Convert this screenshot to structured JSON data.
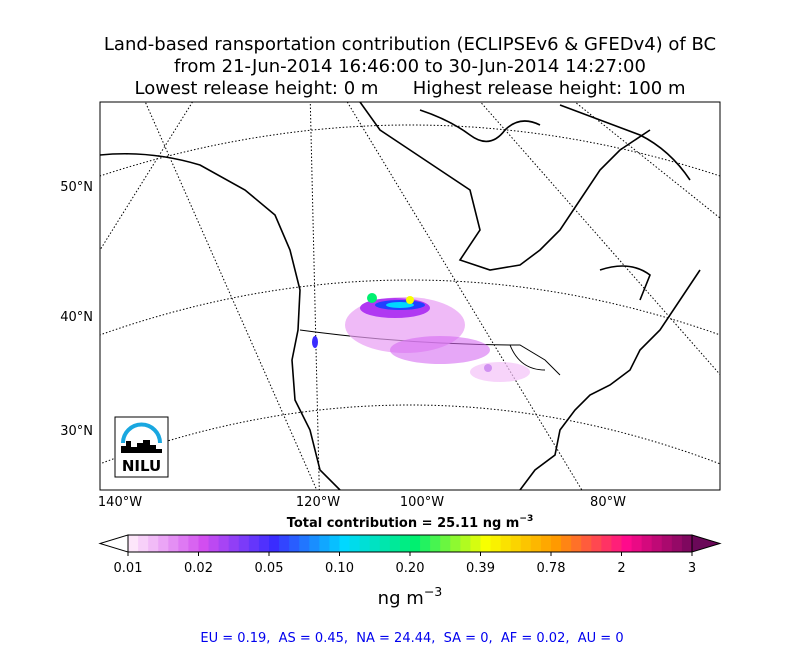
{
  "header": {
    "lines": [
      "Land-based ransportation contribution (ECLIPSEv6 & GFEDv4) of BC",
      "from 21-Jun-2014 16:46:00 to 30-Jun-2014 14:27:00",
      "Lowest release height: 0 m      Highest release height: 100 m"
    ]
  },
  "map": {
    "lat_labels": [
      "50°N",
      "40°N",
      "30°N"
    ],
    "lon_labels": [
      "140°W",
      "120°W",
      "100°W",
      "80°W"
    ],
    "logo": "NILU"
  },
  "total": {
    "text": "Total contribution = 25.11 ng m",
    "sup": "−3"
  },
  "colorbar": {
    "ticks": [
      "0.01",
      "0.02",
      "0.05",
      "0.10",
      "0.20",
      "0.39",
      "0.78",
      "2",
      "3"
    ],
    "anchor_colors": [
      "#fde6fa",
      "#d24ef0",
      "#3a2cff",
      "#00d8ff",
      "#00f070",
      "#f8ff00",
      "#ff9a00",
      "#ff0a8c",
      "#6a0858"
    ],
    "unit": {
      "text": "ng m",
      "sup": "−3"
    }
  },
  "footer": {
    "text": "EU = 0.19,  AS = 0.45,  NA = 24.44,  SA = 0,  AF = 0.02,  AU = 0"
  }
}
